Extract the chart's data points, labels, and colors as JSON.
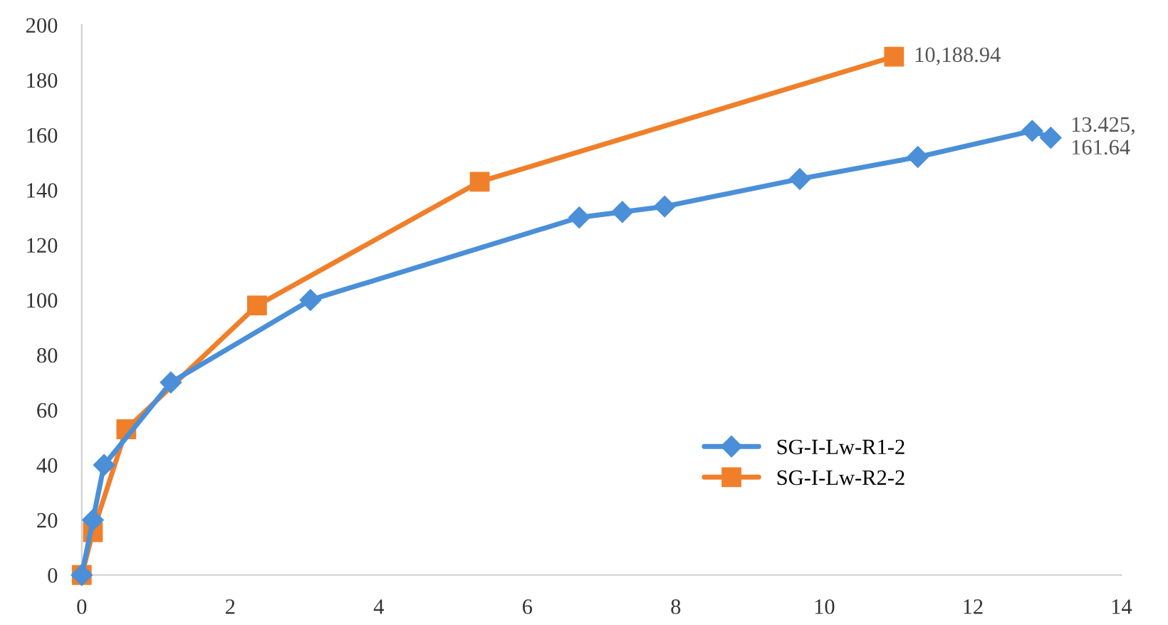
{
  "chart_data": {
    "type": "line",
    "series": [
      {
        "name": "SG-I-Lw-R1-2",
        "color": "#4a8fd8",
        "marker": "diamond",
        "x": [
          0,
          0.15,
          0.3,
          1.2,
          3.08,
          6.7,
          7.28,
          7.85,
          9.67,
          11.26,
          12.8,
          13.05
        ],
        "values": [
          0,
          20,
          40,
          70,
          100,
          130,
          132,
          134,
          144,
          152,
          161.5,
          159
        ]
      },
      {
        "name": "SG-I-Lw-R2-2",
        "color": "#f07f2a",
        "marker": "square",
        "x": [
          0,
          0.15,
          0.6,
          2.36,
          5.36,
          10.94
        ],
        "values": [
          0,
          15.6,
          53,
          98,
          143,
          188.5
        ]
      }
    ],
    "annotations": [
      "13.425,\n161.64",
      "10,188.94"
    ],
    "xlim": [
      0,
      14
    ],
    "xticks": [
      0,
      2,
      4,
      6,
      8,
      10,
      12,
      14
    ],
    "ylim": [
      0,
      200
    ],
    "yticks": [
      0,
      20,
      40,
      60,
      80,
      100,
      120,
      140,
      160,
      180,
      200
    ],
    "grid": false,
    "legend": "bottom right"
  }
}
